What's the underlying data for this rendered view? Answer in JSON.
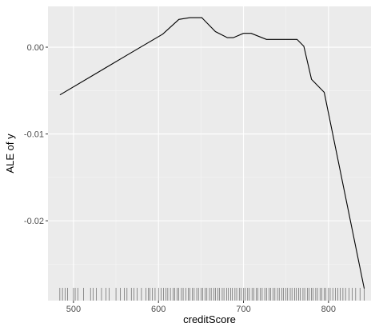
{
  "chart_data": {
    "type": "line",
    "xlabel": "creditScore",
    "ylabel": "ALE of y",
    "xlim": [
      470,
      850
    ],
    "ylim": [
      -0.0292,
      0.0047
    ],
    "x_ticks": [
      {
        "value": 500,
        "label": "500"
      },
      {
        "value": 600,
        "label": "600"
      },
      {
        "value": 700,
        "label": "700"
      },
      {
        "value": 800,
        "label": "800"
      }
    ],
    "y_ticks": [
      {
        "value": 0.0,
        "label": "0.00"
      },
      {
        "value": -0.01,
        "label": "-0.01"
      },
      {
        "value": -0.02,
        "label": "-0.02"
      }
    ],
    "grid": true,
    "colors": {
      "panel": "#ebebeb",
      "grid_major": "#ffffff",
      "line": "#000000",
      "rug": "#000000",
      "tick_text": "#4d4d4d"
    },
    "series": [
      {
        "x": [
          484,
          527,
          565,
          605,
          624,
          637,
          651,
          667,
          681,
          688,
          700,
          709,
          727,
          743,
          752,
          763,
          771,
          780,
          795,
          842
        ],
        "y": [
          -0.0055,
          -0.003,
          -0.0008,
          0.0015,
          0.0032,
          0.0034,
          0.0034,
          0.0018,
          0.0011,
          0.0011,
          0.0016,
          0.0016,
          0.0009,
          0.0009,
          0.0009,
          0.0009,
          0.0001,
          -0.0037,
          -0.0052,
          -0.0278
        ]
      }
    ],
    "rug_x": [
      484,
      487,
      490,
      493,
      500,
      502,
      505,
      512,
      520,
      523,
      527,
      533,
      538,
      542,
      550,
      555,
      560,
      563,
      568,
      571,
      575,
      580,
      585,
      588,
      590,
      593,
      596,
      600,
      603,
      606,
      609,
      611,
      614,
      617,
      619,
      622,
      624,
      627,
      629,
      632,
      635,
      637,
      640,
      642,
      645,
      647,
      650,
      652,
      655,
      657,
      660,
      662,
      665,
      667,
      670,
      672,
      675,
      677,
      680,
      682,
      685,
      687,
      690,
      692,
      695,
      697,
      700,
      702,
      705,
      707,
      710,
      712,
      715,
      717,
      720,
      722,
      725,
      727,
      730,
      732,
      735,
      737,
      740,
      742,
      745,
      747,
      750,
      752,
      755,
      757,
      760,
      762,
      765,
      767,
      770,
      772,
      775,
      777,
      780,
      782,
      785,
      787,
      790,
      792,
      795,
      797,
      800,
      802,
      805,
      808,
      811,
      814,
      817,
      820,
      824,
      828,
      832,
      837,
      842
    ]
  }
}
